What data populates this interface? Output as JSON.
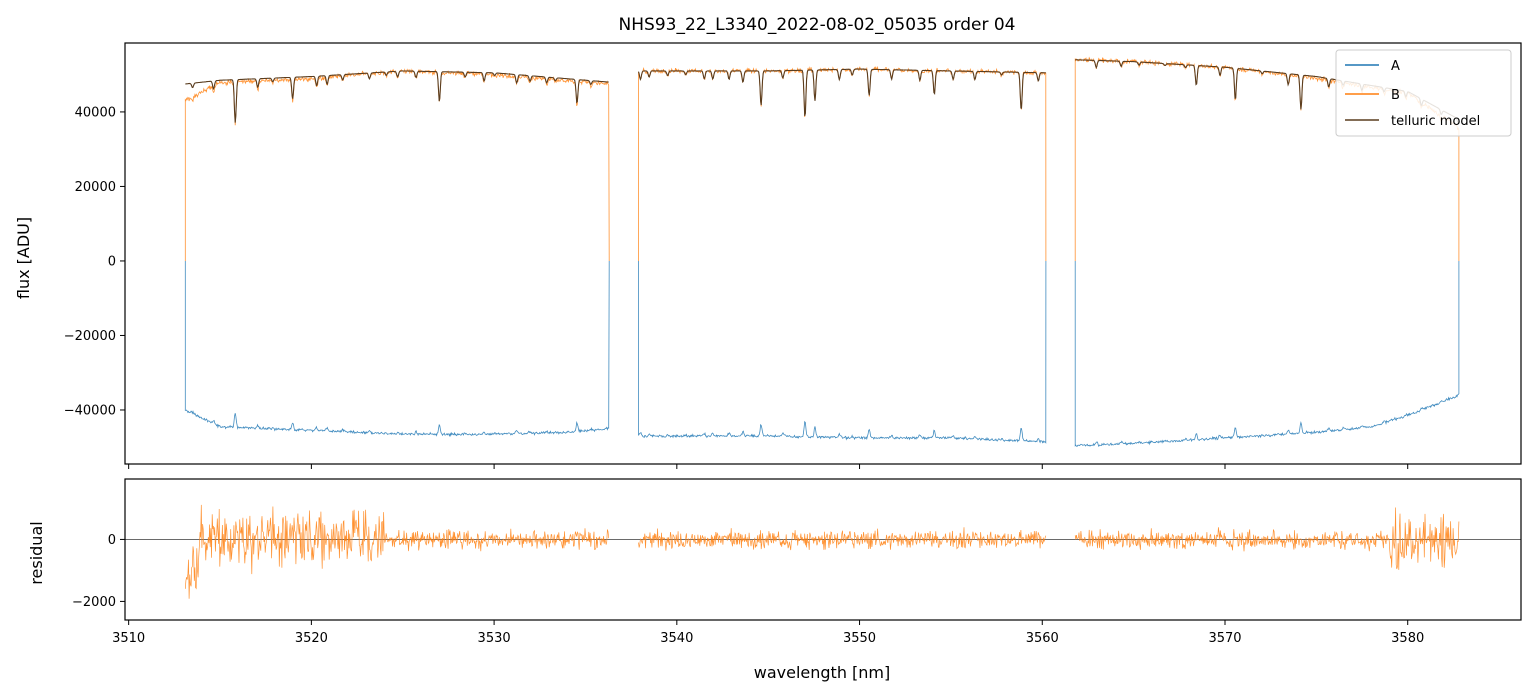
{
  "chart_data": [
    {
      "type": "line",
      "title": "NHS93_22_L3340_2022-08-02_05035  order 04",
      "xlabel": "",
      "ylabel": "flux [ADU]",
      "xlim": [
        3509.8,
        3586.2
      ],
      "ylim": [
        -54500,
        58500
      ],
      "yticks": [
        40000,
        20000,
        0,
        -20000,
        -40000
      ],
      "ytick_labels": [
        "40000",
        "20000",
        "0",
        "−20000",
        "−40000"
      ],
      "xticks": [
        3510,
        3520,
        3530,
        3540,
        3550,
        3560,
        3570,
        3580
      ],
      "segments": [
        [
          3513.1,
          3536.3
        ],
        [
          3537.9,
          3560.2
        ],
        [
          3561.8,
          3582.8
        ]
      ],
      "legend": {
        "location": "top-right",
        "entries": [
          "A",
          "B",
          "telluric model"
        ]
      },
      "series": [
        {
          "name": "A",
          "color": "#1f77b4",
          "baseline": [
            [
              3513.1,
              -40000
            ],
            [
              3515,
              -44500
            ],
            [
              3520,
              -45500
            ],
            [
              3525,
              -46500
            ],
            [
              3530,
              -46500
            ],
            [
              3534,
              -46000
            ],
            [
              3536.3,
              -45000
            ],
            [
              3537.9,
              -47000
            ],
            [
              3545,
              -47000
            ],
            [
              3550,
              -47500
            ],
            [
              3555,
              -47500
            ],
            [
              3560.2,
              -48500
            ],
            [
              3561.8,
              -49500
            ],
            [
              3565,
              -49000
            ],
            [
              3570,
              -47500
            ],
            [
              3575,
              -46000
            ],
            [
              3578,
              -44500
            ],
            [
              3580,
              -41500
            ],
            [
              3582.8,
              -36000
            ]
          ]
        },
        {
          "name": "B",
          "color": "#ff7f0e",
          "baseline": [
            [
              3513.1,
              43000
            ],
            [
              3515,
              48000
            ],
            [
              3520,
              49000
            ],
            [
              3525,
              51000
            ],
            [
              3530,
              50000
            ],
            [
              3536.3,
              47500
            ],
            [
              3537.9,
              51000
            ],
            [
              3545,
              51000
            ],
            [
              3550,
              51500
            ],
            [
              3555,
              51000
            ],
            [
              3560.2,
              50500
            ],
            [
              3561.8,
              54000
            ],
            [
              3565,
              53500
            ],
            [
              3570,
              52000
            ],
            [
              3575,
              49000
            ],
            [
              3580,
              45000
            ],
            [
              3582.8,
              36000
            ]
          ]
        },
        {
          "name": "telluric model",
          "color": "#5a3d1f",
          "baseline": [
            [
              3513.1,
              47500
            ],
            [
              3515,
              48500
            ],
            [
              3520,
              49500
            ],
            [
              3525,
              51000
            ],
            [
              3530,
              50500
            ],
            [
              3536.3,
              48000
            ],
            [
              3537.9,
              51000
            ],
            [
              3545,
              51000
            ],
            [
              3550,
              51500
            ],
            [
              3555,
              51000
            ],
            [
              3560.2,
              50500
            ],
            [
              3561.8,
              54000
            ],
            [
              3565,
              53500
            ],
            [
              3570,
              52000
            ],
            [
              3575,
              49500
            ],
            [
              3580,
              45500
            ],
            [
              3582.8,
              38000
            ]
          ]
        }
      ]
    },
    {
      "type": "line",
      "title": "",
      "xlabel": "wavelength [nm]",
      "ylabel": "residual",
      "xlim": [
        3509.8,
        3586.2
      ],
      "ylim": [
        -2600,
        1950
      ],
      "yticks": [
        0,
        -2000
      ],
      "ytick_labels": [
        "0",
        "−2000"
      ],
      "xticks": [
        3510,
        3520,
        3530,
        3540,
        3550,
        3560,
        3570,
        3580
      ],
      "xtick_labels": [
        "3510",
        "3520",
        "3530",
        "3540",
        "3550",
        "3560",
        "3570",
        "3580"
      ],
      "reference_line": 0,
      "series": [
        {
          "name": "residual B",
          "color": "#ff7f0e"
        }
      ]
    }
  ]
}
